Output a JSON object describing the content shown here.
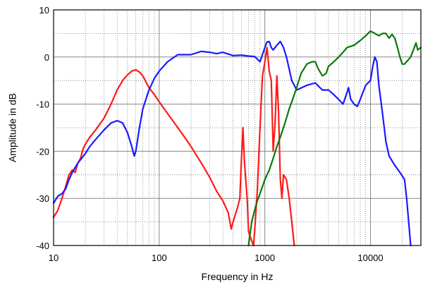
{
  "chart_data": {
    "type": "line",
    "xlabel": "Frequency in Hz",
    "ylabel": "Amplitude in dB",
    "x_scale": "log",
    "xlim": [
      10,
      30000
    ],
    "ylim": [
      -40,
      10
    ],
    "x_ticks": [
      {
        "value": 10,
        "label": "10"
      },
      {
        "value": 100,
        "label": "100"
      },
      {
        "value": 1000,
        "label": "1000"
      },
      {
        "value": 10000,
        "label": "10000"
      }
    ],
    "y_ticks": [
      {
        "value": 10,
        "label": "10"
      },
      {
        "value": 0,
        "label": "0"
      },
      {
        "value": -10,
        "label": "-10"
      },
      {
        "value": -20,
        "label": "-20"
      },
      {
        "value": -30,
        "label": "-30"
      },
      {
        "value": -40,
        "label": "-40"
      }
    ],
    "grid": true,
    "series": [
      {
        "color": "#ff1a1a",
        "points": [
          [
            10,
            -34
          ],
          [
            11,
            -32.5
          ],
          [
            12,
            -30
          ],
          [
            13,
            -27.5
          ],
          [
            14,
            -25
          ],
          [
            15,
            -24
          ],
          [
            16,
            -24.5
          ],
          [
            17,
            -22.5
          ],
          [
            18,
            -21.5
          ],
          [
            19,
            -19.5
          ],
          [
            20,
            -18.5
          ],
          [
            22,
            -17
          ],
          [
            25,
            -15.5
          ],
          [
            30,
            -13
          ],
          [
            35,
            -10
          ],
          [
            40,
            -7
          ],
          [
            45,
            -5
          ],
          [
            50,
            -3.8
          ],
          [
            55,
            -3
          ],
          [
            60,
            -2.7
          ],
          [
            65,
            -3.2
          ],
          [
            70,
            -4
          ],
          [
            80,
            -6.5
          ],
          [
            90,
            -8
          ],
          [
            100,
            -9.5
          ],
          [
            120,
            -12
          ],
          [
            150,
            -15
          ],
          [
            180,
            -17.5
          ],
          [
            200,
            -19
          ],
          [
            250,
            -22.5
          ],
          [
            300,
            -25.5
          ],
          [
            350,
            -28.5
          ],
          [
            400,
            -30.5
          ],
          [
            450,
            -33
          ],
          [
            480,
            -36.5
          ],
          [
            500,
            -35
          ],
          [
            550,
            -32
          ],
          [
            580,
            -30
          ],
          [
            600,
            -22
          ],
          [
            620,
            -15
          ],
          [
            640,
            -22
          ],
          [
            680,
            -30
          ],
          [
            700,
            -37
          ],
          [
            750,
            -39
          ],
          [
            780,
            -40
          ],
          [
            800,
            -37
          ],
          [
            850,
            -28
          ],
          [
            900,
            -15
          ],
          [
            950,
            -4
          ],
          [
            1000,
            -1
          ],
          [
            1050,
            2
          ],
          [
            1100,
            -3
          ],
          [
            1150,
            -5
          ],
          [
            1200,
            -20
          ],
          [
            1250,
            -14
          ],
          [
            1300,
            -4
          ],
          [
            1350,
            -12
          ],
          [
            1400,
            -26
          ],
          [
            1450,
            -30
          ],
          [
            1500,
            -25
          ],
          [
            1600,
            -26
          ],
          [
            1700,
            -30
          ],
          [
            1800,
            -35
          ],
          [
            1900,
            -40
          ]
        ]
      },
      {
        "color": "#1a1aff",
        "points": [
          [
            10,
            -31
          ],
          [
            11,
            -29.5
          ],
          [
            12,
            -29
          ],
          [
            13,
            -28
          ],
          [
            14,
            -26
          ],
          [
            15,
            -24.5
          ],
          [
            17,
            -22.5
          ],
          [
            20,
            -20.5
          ],
          [
            22,
            -19
          ],
          [
            25,
            -17.5
          ],
          [
            30,
            -15.5
          ],
          [
            35,
            -14
          ],
          [
            40,
            -13.5
          ],
          [
            45,
            -14
          ],
          [
            50,
            -16
          ],
          [
            55,
            -19
          ],
          [
            58,
            -21
          ],
          [
            60,
            -20
          ],
          [
            65,
            -15
          ],
          [
            70,
            -11
          ],
          [
            80,
            -7
          ],
          [
            90,
            -4.5
          ],
          [
            100,
            -3
          ],
          [
            120,
            -1
          ],
          [
            150,
            0.5
          ],
          [
            200,
            0.5
          ],
          [
            250,
            1.2
          ],
          [
            300,
            1
          ],
          [
            350,
            0.7
          ],
          [
            400,
            1
          ],
          [
            500,
            0.3
          ],
          [
            600,
            0.4
          ],
          [
            700,
            0.2
          ],
          [
            800,
            0.1
          ],
          [
            900,
            -1
          ],
          [
            1000,
            2
          ],
          [
            1050,
            3.2
          ],
          [
            1100,
            3.3
          ],
          [
            1150,
            2
          ],
          [
            1200,
            1.5
          ],
          [
            1300,
            2.5
          ],
          [
            1400,
            3.3
          ],
          [
            1500,
            2
          ],
          [
            1600,
            0
          ],
          [
            1800,
            -5
          ],
          [
            2000,
            -7
          ],
          [
            2500,
            -6
          ],
          [
            3000,
            -5.5
          ],
          [
            3500,
            -7
          ],
          [
            4000,
            -7
          ],
          [
            4500,
            -8
          ],
          [
            5000,
            -9
          ],
          [
            5500,
            -10
          ],
          [
            6000,
            -7.5
          ],
          [
            6200,
            -6.5
          ],
          [
            6500,
            -9
          ],
          [
            7000,
            -10
          ],
          [
            7500,
            -10.5
          ],
          [
            8000,
            -9
          ],
          [
            9000,
            -6
          ],
          [
            10000,
            -5
          ],
          [
            10500,
            -2
          ],
          [
            11000,
            0
          ],
          [
            11500,
            -1
          ],
          [
            12000,
            -6
          ],
          [
            13000,
            -12
          ],
          [
            14000,
            -18
          ],
          [
            15000,
            -21
          ],
          [
            17000,
            -23
          ],
          [
            19000,
            -24.5
          ],
          [
            21000,
            -26
          ],
          [
            22000,
            -30
          ],
          [
            23000,
            -35
          ],
          [
            24000,
            -40
          ]
        ]
      },
      {
        "color": "#0a7a0a",
        "points": [
          [
            700,
            -40
          ],
          [
            750,
            -35
          ],
          [
            800,
            -32.5
          ],
          [
            850,
            -30.5
          ],
          [
            900,
            -29
          ],
          [
            950,
            -27.5
          ],
          [
            1000,
            -26
          ],
          [
            1100,
            -24
          ],
          [
            1200,
            -21.5
          ],
          [
            1300,
            -19
          ],
          [
            1400,
            -17
          ],
          [
            1500,
            -15
          ],
          [
            1600,
            -13
          ],
          [
            1700,
            -11
          ],
          [
            1800,
            -9.5
          ],
          [
            1900,
            -8
          ],
          [
            2000,
            -6.5
          ],
          [
            2200,
            -3.5
          ],
          [
            2500,
            -1.5
          ],
          [
            2800,
            -1
          ],
          [
            3000,
            -1
          ],
          [
            3200,
            -2.5
          ],
          [
            3500,
            -4
          ],
          [
            3800,
            -3.5
          ],
          [
            4000,
            -2
          ],
          [
            4500,
            -1
          ],
          [
            5000,
            0
          ],
          [
            5500,
            1
          ],
          [
            6000,
            2
          ],
          [
            7000,
            2.5
          ],
          [
            8000,
            3.5
          ],
          [
            9000,
            4.5
          ],
          [
            10000,
            5.5
          ],
          [
            11000,
            5
          ],
          [
            12000,
            4.5
          ],
          [
            13000,
            5
          ],
          [
            14000,
            5
          ],
          [
            15000,
            4
          ],
          [
            16000,
            4.8
          ],
          [
            17000,
            4
          ],
          [
            18000,
            2
          ],
          [
            19000,
            0
          ],
          [
            20000,
            -1.5
          ],
          [
            21000,
            -1.5
          ],
          [
            22000,
            -1
          ],
          [
            24000,
            0
          ],
          [
            26000,
            2
          ],
          [
            27000,
            3
          ],
          [
            28000,
            1.5
          ],
          [
            30000,
            2
          ]
        ]
      }
    ]
  }
}
